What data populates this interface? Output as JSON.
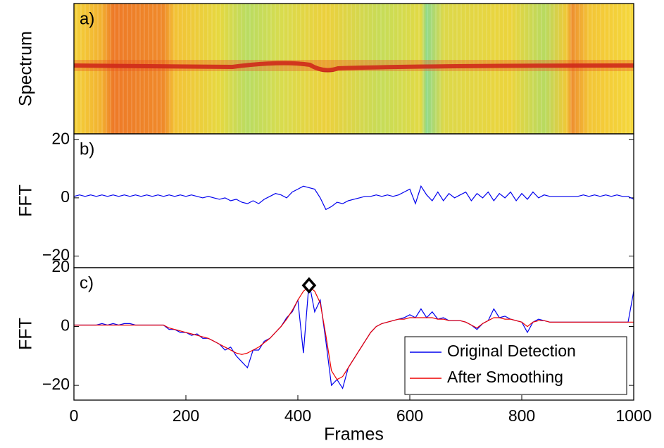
{
  "chart_data": [
    {
      "type": "spectrogram",
      "annotation": "a)",
      "ylabel": "Spectrum"
    },
    {
      "type": "line",
      "annotation": "b)",
      "ylabel": "FFT",
      "x": [
        0,
        10,
        20,
        30,
        40,
        50,
        60,
        70,
        80,
        90,
        100,
        110,
        120,
        130,
        140,
        150,
        160,
        170,
        180,
        190,
        200,
        210,
        220,
        230,
        240,
        250,
        260,
        270,
        280,
        290,
        300,
        310,
        320,
        330,
        340,
        350,
        360,
        370,
        380,
        390,
        400,
        410,
        420,
        430,
        440,
        450,
        460,
        470,
        480,
        490,
        500,
        510,
        520,
        530,
        540,
        550,
        560,
        570,
        580,
        590,
        600,
        610,
        620,
        630,
        640,
        650,
        660,
        670,
        680,
        690,
        700,
        710,
        720,
        730,
        740,
        750,
        760,
        770,
        780,
        790,
        800,
        810,
        820,
        830,
        840,
        850,
        860,
        870,
        880,
        890,
        900,
        910,
        920,
        930,
        940,
        950,
        960,
        970,
        980,
        990,
        1000
      ],
      "series": [
        {
          "color": "#0000ee",
          "values": [
            0.5,
            1,
            0.5,
            1,
            0.5,
            1,
            0.5,
            1,
            0.5,
            1,
            0.5,
            1,
            0.5,
            1,
            0.5,
            1,
            0.5,
            1,
            0.5,
            1,
            0.5,
            1,
            0.5,
            0,
            0.5,
            0,
            -0.5,
            0,
            -1,
            -0.5,
            -1.5,
            -2,
            -1,
            -2,
            -0.5,
            0.5,
            1.5,
            1,
            0,
            2,
            3,
            4,
            3.5,
            3,
            0,
            -4,
            -3,
            -1.5,
            -2,
            -1,
            -0.5,
            0,
            0.5,
            0.5,
            1,
            0.5,
            1,
            0.5,
            1,
            2,
            3,
            -2,
            4,
            1,
            -1,
            2,
            -1,
            1.5,
            0,
            1,
            2,
            -1,
            1.5,
            0,
            2,
            -1,
            1.5,
            0,
            2,
            -1,
            1.5,
            -0.5,
            2,
            0,
            1,
            0.5,
            0.5,
            0.5,
            0.5,
            0.5,
            0.5,
            1,
            0.5,
            1,
            0.5,
            1,
            0.5,
            1,
            0.5,
            0.5,
            -0.5
          ]
        }
      ],
      "xlim": [
        0,
        1000
      ],
      "ylim": [
        -24,
        22
      ],
      "yticks": [
        {
          "value": -20,
          "label": "−20"
        },
        0,
        20
      ]
    },
    {
      "type": "line",
      "annotation": "c)",
      "ylabel": "FFT",
      "xlabel": "Frames",
      "x": [
        0,
        10,
        20,
        30,
        40,
        50,
        60,
        70,
        80,
        90,
        100,
        110,
        120,
        130,
        140,
        150,
        160,
        170,
        180,
        190,
        200,
        210,
        220,
        230,
        240,
        250,
        260,
        270,
        280,
        290,
        300,
        310,
        320,
        330,
        340,
        350,
        360,
        370,
        380,
        390,
        400,
        410,
        420,
        430,
        440,
        450,
        460,
        470,
        480,
        490,
        500,
        510,
        520,
        530,
        540,
        550,
        560,
        570,
        580,
        590,
        600,
        610,
        620,
        630,
        640,
        650,
        660,
        670,
        680,
        690,
        700,
        710,
        720,
        730,
        740,
        750,
        760,
        770,
        780,
        790,
        800,
        810,
        820,
        830,
        840,
        850,
        860,
        870,
        880,
        890,
        900,
        910,
        920,
        930,
        940,
        950,
        960,
        970,
        980,
        990,
        1000
      ],
      "series": [
        {
          "name": "Original Detection",
          "color": "#0000ee",
          "values": [
            0.5,
            0.5,
            0.5,
            0.5,
            0.5,
            1,
            0.5,
            1,
            0.5,
            1,
            1,
            0.5,
            0.5,
            0.5,
            0.5,
            0.5,
            0.5,
            -1,
            -1,
            -2,
            -2,
            -3,
            -2.5,
            -4,
            -4,
            -5,
            -6,
            -8,
            -7,
            -10,
            -12,
            -14,
            -8,
            -8,
            -5,
            -4,
            -2,
            0,
            3,
            5,
            9,
            -9,
            15,
            5,
            9,
            -5,
            -20,
            -18,
            -21,
            -14,
            -11,
            -8,
            -5,
            -2,
            0,
            1,
            1.5,
            2,
            2.5,
            3,
            4,
            3,
            6,
            3,
            5,
            2.5,
            3,
            2,
            2,
            2,
            1.5,
            0.5,
            -1,
            1,
            2,
            6,
            3,
            3.5,
            2.5,
            2,
            1.5,
            -2,
            1.5,
            2.5,
            2,
            1.5,
            1.5,
            1.5,
            1.5,
            1.5,
            1.5,
            1.5,
            1.5,
            1.5,
            1.5,
            1.5,
            1.5,
            1.5,
            1.5,
            1.5,
            12
          ]
        },
        {
          "name": "After Smoothing",
          "color": "#ee0000",
          "values": [
            0.5,
            0.5,
            0.5,
            0.5,
            0.5,
            0.5,
            0.5,
            0.5,
            0.5,
            0.5,
            0.5,
            0.5,
            0.5,
            0.5,
            0.5,
            0.5,
            0.5,
            -0.5,
            -1,
            -1.5,
            -2,
            -2.5,
            -3,
            -3.5,
            -4,
            -5,
            -6,
            -7,
            -8,
            -9,
            -9.5,
            -9,
            -8,
            -7,
            -5.5,
            -4,
            -2,
            0,
            2.5,
            5.5,
            9,
            12,
            13.5,
            12,
            8,
            -3,
            -15,
            -18,
            -17,
            -14,
            -11,
            -8,
            -5,
            -2,
            0,
            1,
            1.5,
            2,
            2.5,
            2.5,
            3,
            3,
            3,
            3,
            3,
            2.5,
            2.5,
            2,
            2,
            2,
            1.5,
            0.5,
            -0.5,
            1,
            2,
            3,
            3,
            2.5,
            2.5,
            2,
            1.5,
            0,
            1.5,
            2,
            2,
            1.5,
            1.5,
            1.5,
            1.5,
            1.5,
            1.5,
            1.5,
            1.5,
            1.5,
            1.5,
            1.5,
            1.5,
            1.5,
            1.5,
            1.5,
            1.5
          ]
        }
      ],
      "marker": {
        "x": 420,
        "y": 14
      },
      "xlim": [
        0,
        1000
      ],
      "ylim": [
        -25,
        20
      ],
      "xticks": [
        0,
        200,
        400,
        600,
        800,
        1000
      ],
      "yticks": [
        {
          "value": -20,
          "label": "−20"
        },
        0,
        20
      ],
      "legend": "lower right"
    }
  ]
}
